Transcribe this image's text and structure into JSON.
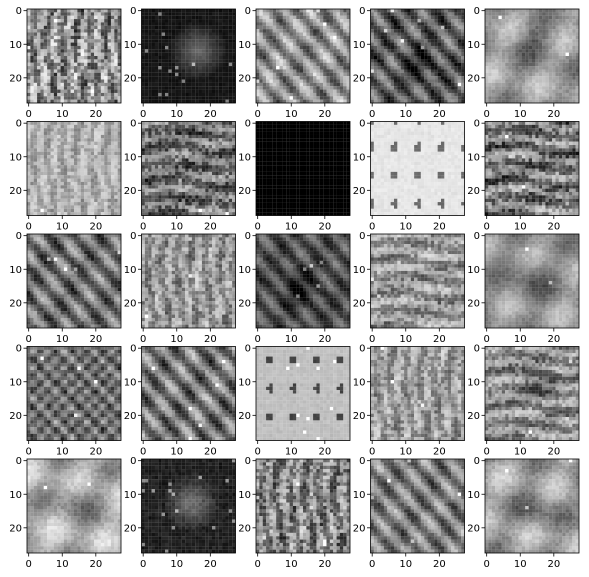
{
  "chart_data": {
    "type": "heatmap",
    "layout": {
      "rows": 5,
      "cols": 5
    },
    "colormap": "gray",
    "image_shape": [
      28,
      28
    ],
    "panels_count": 25,
    "xlim": [
      0,
      27
    ],
    "ylim": [
      27,
      0
    ],
    "x_ticks": [
      0,
      10,
      20
    ],
    "y_ticks": [
      0,
      10,
      20
    ],
    "x_tick_labels": [
      "0",
      "10",
      "20"
    ],
    "y_tick_labels": [
      "0",
      "10",
      "20"
    ],
    "panels": [
      {
        "mean": 0.55,
        "contrast": 0.38,
        "texture": "vertical",
        "blob": false,
        "bright_points": 3
      },
      {
        "mean": 0.08,
        "contrast": 0.1,
        "texture": "sparse",
        "blob": true,
        "bright_points": 14
      },
      {
        "mean": 0.55,
        "contrast": 0.34,
        "texture": "diagonal",
        "blob": false,
        "bright_points": 6
      },
      {
        "mean": 0.35,
        "contrast": 0.32,
        "texture": "diagonal",
        "blob": true,
        "bright_points": 8
      },
      {
        "mean": 0.6,
        "contrast": 0.26,
        "texture": "smooth",
        "blob": true,
        "bright_points": 2
      },
      {
        "mean": 0.68,
        "contrast": 0.18,
        "texture": "vertical",
        "blob": false,
        "bright_points": 1
      },
      {
        "mean": 0.42,
        "contrast": 0.33,
        "texture": "horizontal",
        "blob": false,
        "bright_points": 5
      },
      {
        "mean": 0.0,
        "contrast": 0.0,
        "texture": "flat",
        "blob": false,
        "bright_points": 0
      },
      {
        "mean": 0.9,
        "contrast": 0.1,
        "texture": "sparse",
        "blob": false,
        "bright_points": 0
      },
      {
        "mean": 0.46,
        "contrast": 0.36,
        "texture": "horizontal",
        "blob": false,
        "bright_points": 4
      },
      {
        "mean": 0.42,
        "contrast": 0.34,
        "texture": "diagonal",
        "blob": false,
        "bright_points": 5
      },
      {
        "mean": 0.58,
        "contrast": 0.26,
        "texture": "vertical",
        "blob": false,
        "bright_points": 3
      },
      {
        "mean": 0.3,
        "contrast": 0.24,
        "texture": "diagonal",
        "blob": true,
        "bright_points": 5
      },
      {
        "mean": 0.58,
        "contrast": 0.27,
        "texture": "horizontal",
        "blob": false,
        "bright_points": 3
      },
      {
        "mean": 0.58,
        "contrast": 0.24,
        "texture": "smooth",
        "blob": true,
        "bright_points": 2
      },
      {
        "mean": 0.42,
        "contrast": 0.34,
        "texture": "checker",
        "blob": false,
        "bright_points": 4
      },
      {
        "mean": 0.45,
        "contrast": 0.36,
        "texture": "diagonal",
        "blob": false,
        "bright_points": 6
      },
      {
        "mean": 0.75,
        "contrast": 0.1,
        "texture": "sparse",
        "blob": false,
        "bright_points": 10
      },
      {
        "mean": 0.6,
        "contrast": 0.24,
        "texture": "vertical",
        "blob": false,
        "bright_points": 3
      },
      {
        "mean": 0.55,
        "contrast": 0.28,
        "texture": "horizontal",
        "blob": true,
        "bright_points": 3
      },
      {
        "mean": 0.68,
        "contrast": 0.28,
        "texture": "smooth",
        "blob": true,
        "bright_points": 2
      },
      {
        "mean": 0.12,
        "contrast": 0.18,
        "texture": "sparse",
        "blob": true,
        "bright_points": 18
      },
      {
        "mean": 0.5,
        "contrast": 0.34,
        "texture": "vertical",
        "blob": false,
        "bright_points": 4
      },
      {
        "mean": 0.48,
        "contrast": 0.32,
        "texture": "diagonal",
        "blob": false,
        "bright_points": 5
      },
      {
        "mean": 0.62,
        "contrast": 0.28,
        "texture": "smooth",
        "blob": true,
        "bright_points": 3
      }
    ]
  }
}
